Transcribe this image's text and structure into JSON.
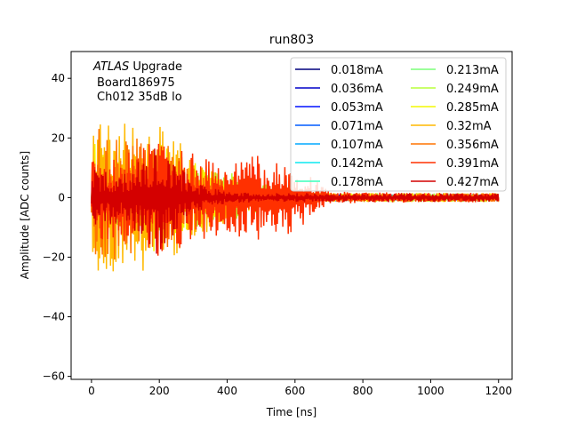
{
  "chart_data": {
    "type": "line",
    "title": "run803",
    "xlabel": "Time [ns]",
    "ylabel": "Amplitude [ADC counts]",
    "xlim": [
      -60,
      1240
    ],
    "ylim": [
      -61,
      49
    ],
    "xticks": [
      0,
      200,
      400,
      600,
      800,
      1000,
      1200
    ],
    "yticks": [
      -60,
      -40,
      -20,
      0,
      20,
      40
    ],
    "grid": false,
    "legend_placement": "top-right",
    "legend_columns": 2,
    "annotation": {
      "italic": "ATLAS",
      "rest": " Upgrade",
      "line2": "Board186975",
      "line3": "Ch012 35dB lo"
    },
    "envelope_x": [
      0,
      100,
      200,
      300,
      400,
      500,
      600,
      700,
      1200
    ],
    "series": [
      {
        "name": "0.018mA",
        "color": "#00007f",
        "envelope": [
          4,
          3,
          3,
          2,
          1.5,
          1,
          1,
          1,
          1
        ]
      },
      {
        "name": "0.036mA",
        "color": "#0000c8",
        "envelope": [
          4,
          3,
          3,
          2,
          1.5,
          1,
          1,
          1,
          1
        ]
      },
      {
        "name": "0.053mA",
        "color": "#0010ff",
        "envelope": [
          4,
          3,
          3,
          2,
          1.5,
          1,
          1,
          1,
          1
        ]
      },
      {
        "name": "0.071mA",
        "color": "#005cff",
        "envelope": [
          5,
          4,
          3,
          2,
          1.5,
          1,
          1,
          1,
          1
        ]
      },
      {
        "name": "0.107mA",
        "color": "#00a8ff",
        "envelope": [
          5,
          4,
          4,
          2,
          1.5,
          1,
          1,
          1,
          1
        ]
      },
      {
        "name": "0.142mA",
        "color": "#0ce8f0",
        "envelope": [
          6,
          5,
          4,
          3,
          2,
          1,
          1,
          1,
          1
        ]
      },
      {
        "name": "0.178mA",
        "color": "#3affbc",
        "envelope": [
          6,
          5,
          5,
          3,
          2,
          1,
          1,
          1,
          1
        ]
      },
      {
        "name": "0.213mA",
        "color": "#7cff79",
        "envelope": [
          8,
          6,
          6,
          4,
          3,
          2,
          1,
          1,
          1
        ]
      },
      {
        "name": "0.249mA",
        "color": "#b9ff3c",
        "envelope": [
          10,
          10,
          12,
          10,
          10,
          5,
          2,
          1.5,
          1.5
        ]
      },
      {
        "name": "0.285mA",
        "color": "#f4f802",
        "envelope": [
          18,
          18,
          18,
          12,
          8,
          3,
          2,
          1.5,
          1.5
        ]
      },
      {
        "name": "0.32mA",
        "color": "#ffb900",
        "envelope": [
          25,
          25,
          25,
          15,
          8,
          3,
          2,
          1.5,
          1.5
        ]
      },
      {
        "name": "0.356mA",
        "color": "#ff7300",
        "envelope": [
          25,
          20,
          20,
          10,
          5,
          3,
          2,
          1.5,
          1.5
        ]
      },
      {
        "name": "0.391mA",
        "color": "#ff3000",
        "envelope": [
          15,
          15,
          20,
          15,
          12,
          15,
          12,
          2,
          1.5
        ]
      },
      {
        "name": "0.427mA",
        "color": "#d40000",
        "envelope": [
          10,
          8,
          20,
          5,
          2,
          1.5,
          1.5,
          1.5,
          1.5
        ]
      }
    ]
  }
}
